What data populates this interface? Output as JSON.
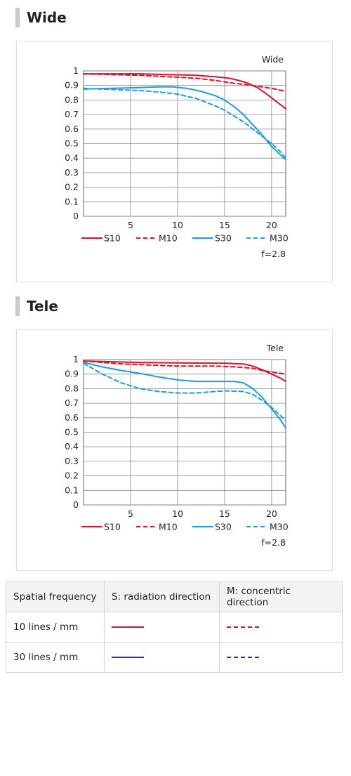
{
  "sections": [
    {
      "title": "Wide"
    },
    {
      "title": "Tele"
    }
  ],
  "colors": {
    "red": "#d7102b",
    "blue": "#1a9de0",
    "table_red": "#d7102b",
    "table_blue": "#2233cc"
  },
  "chart_data": [
    {
      "type": "line",
      "title": "Wide",
      "annotation": "f=2.8",
      "xlim": [
        0,
        21.5
      ],
      "ylim": [
        0,
        1
      ],
      "x_ticks": [
        5,
        10,
        15,
        20
      ],
      "y_ticks": [
        0,
        0.1,
        0.2,
        0.3,
        0.4,
        0.5,
        0.6,
        0.7,
        0.8,
        0.9,
        1
      ],
      "x_tick_labels": [
        "5",
        "10",
        "15",
        "20"
      ],
      "y_tick_labels": [
        "0",
        "0.1",
        "0.2",
        "0.3",
        "0.4",
        "0.5",
        "0.6",
        "0.7",
        "0.8",
        "0.9",
        "1"
      ],
      "grid": true,
      "legend_position": "bottom",
      "series": [
        {
          "name": "S10",
          "color": "red",
          "dash": false,
          "x": [
            0,
            3,
            6,
            9,
            12,
            14,
            15.5,
            16.5,
            17.5,
            18.5,
            19.5,
            20.5,
            21.5
          ],
          "y": [
            0.98,
            0.98,
            0.98,
            0.975,
            0.97,
            0.96,
            0.95,
            0.935,
            0.915,
            0.885,
            0.84,
            0.79,
            0.74
          ]
        },
        {
          "name": "M10",
          "color": "red",
          "dash": true,
          "x": [
            0,
            3,
            6,
            9,
            12,
            14,
            16,
            18,
            19,
            20,
            21.5
          ],
          "y": [
            0.98,
            0.975,
            0.97,
            0.96,
            0.95,
            0.935,
            0.915,
            0.9,
            0.89,
            0.88,
            0.86
          ]
        },
        {
          "name": "S30",
          "color": "blue",
          "dash": false,
          "x": [
            0,
            3,
            6,
            8,
            9.5,
            11,
            12.5,
            14,
            15,
            16,
            17,
            18,
            19,
            20,
            21,
            21.5
          ],
          "y": [
            0.875,
            0.88,
            0.885,
            0.89,
            0.89,
            0.88,
            0.86,
            0.83,
            0.8,
            0.755,
            0.7,
            0.63,
            0.56,
            0.48,
            0.42,
            0.39
          ]
        },
        {
          "name": "M30",
          "color": "blue",
          "dash": true,
          "x": [
            0,
            2,
            4,
            6,
            8,
            10,
            12,
            14,
            15,
            16,
            17,
            18,
            19,
            20,
            21,
            21.5
          ],
          "y": [
            0.88,
            0.875,
            0.87,
            0.865,
            0.855,
            0.84,
            0.81,
            0.76,
            0.73,
            0.69,
            0.65,
            0.6,
            0.55,
            0.5,
            0.44,
            0.4
          ]
        }
      ]
    },
    {
      "type": "line",
      "title": "Tele",
      "annotation": "f=2.8",
      "xlim": [
        0,
        21.5
      ],
      "ylim": [
        0,
        1
      ],
      "x_ticks": [
        5,
        10,
        15,
        20
      ],
      "y_ticks": [
        0,
        0.1,
        0.2,
        0.3,
        0.4,
        0.5,
        0.6,
        0.7,
        0.8,
        0.9,
        1
      ],
      "x_tick_labels": [
        "5",
        "10",
        "15",
        "20"
      ],
      "y_tick_labels": [
        "0",
        "0.1",
        "0.2",
        "0.3",
        "0.4",
        "0.5",
        "0.6",
        "0.7",
        "0.8",
        "0.9",
        "1"
      ],
      "grid": true,
      "legend_position": "bottom",
      "series": [
        {
          "name": "S10",
          "color": "red",
          "dash": false,
          "x": [
            0,
            3,
            6,
            9,
            12,
            15,
            17,
            18,
            19,
            20,
            21,
            21.5
          ],
          "y": [
            0.99,
            0.985,
            0.98,
            0.978,
            0.976,
            0.975,
            0.97,
            0.955,
            0.93,
            0.9,
            0.87,
            0.85
          ]
        },
        {
          "name": "M10",
          "color": "red",
          "dash": true,
          "x": [
            0,
            2,
            4,
            6,
            8,
            10,
            12,
            14,
            16,
            18,
            19,
            20,
            21.5
          ],
          "y": [
            0.99,
            0.98,
            0.97,
            0.965,
            0.96,
            0.955,
            0.955,
            0.955,
            0.95,
            0.94,
            0.925,
            0.915,
            0.9
          ]
        },
        {
          "name": "S30",
          "color": "blue",
          "dash": false,
          "x": [
            0,
            2,
            4,
            6,
            8,
            10,
            12,
            14,
            16,
            17,
            18,
            19,
            20,
            21,
            21.5
          ],
          "y": [
            0.98,
            0.95,
            0.925,
            0.905,
            0.88,
            0.86,
            0.85,
            0.85,
            0.85,
            0.84,
            0.8,
            0.74,
            0.66,
            0.58,
            0.53
          ]
        },
        {
          "name": "M30",
          "color": "blue",
          "dash": true,
          "x": [
            0,
            2,
            4,
            6,
            8,
            10,
            12,
            14,
            15,
            17,
            18,
            19,
            20,
            21,
            21.5
          ],
          "y": [
            0.975,
            0.9,
            0.84,
            0.8,
            0.78,
            0.77,
            0.77,
            0.78,
            0.785,
            0.78,
            0.76,
            0.72,
            0.67,
            0.61,
            0.58
          ]
        }
      ]
    }
  ],
  "table": {
    "headers": [
      "Spatial frequency",
      "S: radiation direction",
      "M: concentric direction"
    ],
    "rows": [
      {
        "label": "10 lines / mm",
        "s_color": "table_red",
        "m_color": "table_red"
      },
      {
        "label": "30 lines / mm",
        "s_color": "table_blue",
        "m_color": "table_blue"
      }
    ]
  }
}
